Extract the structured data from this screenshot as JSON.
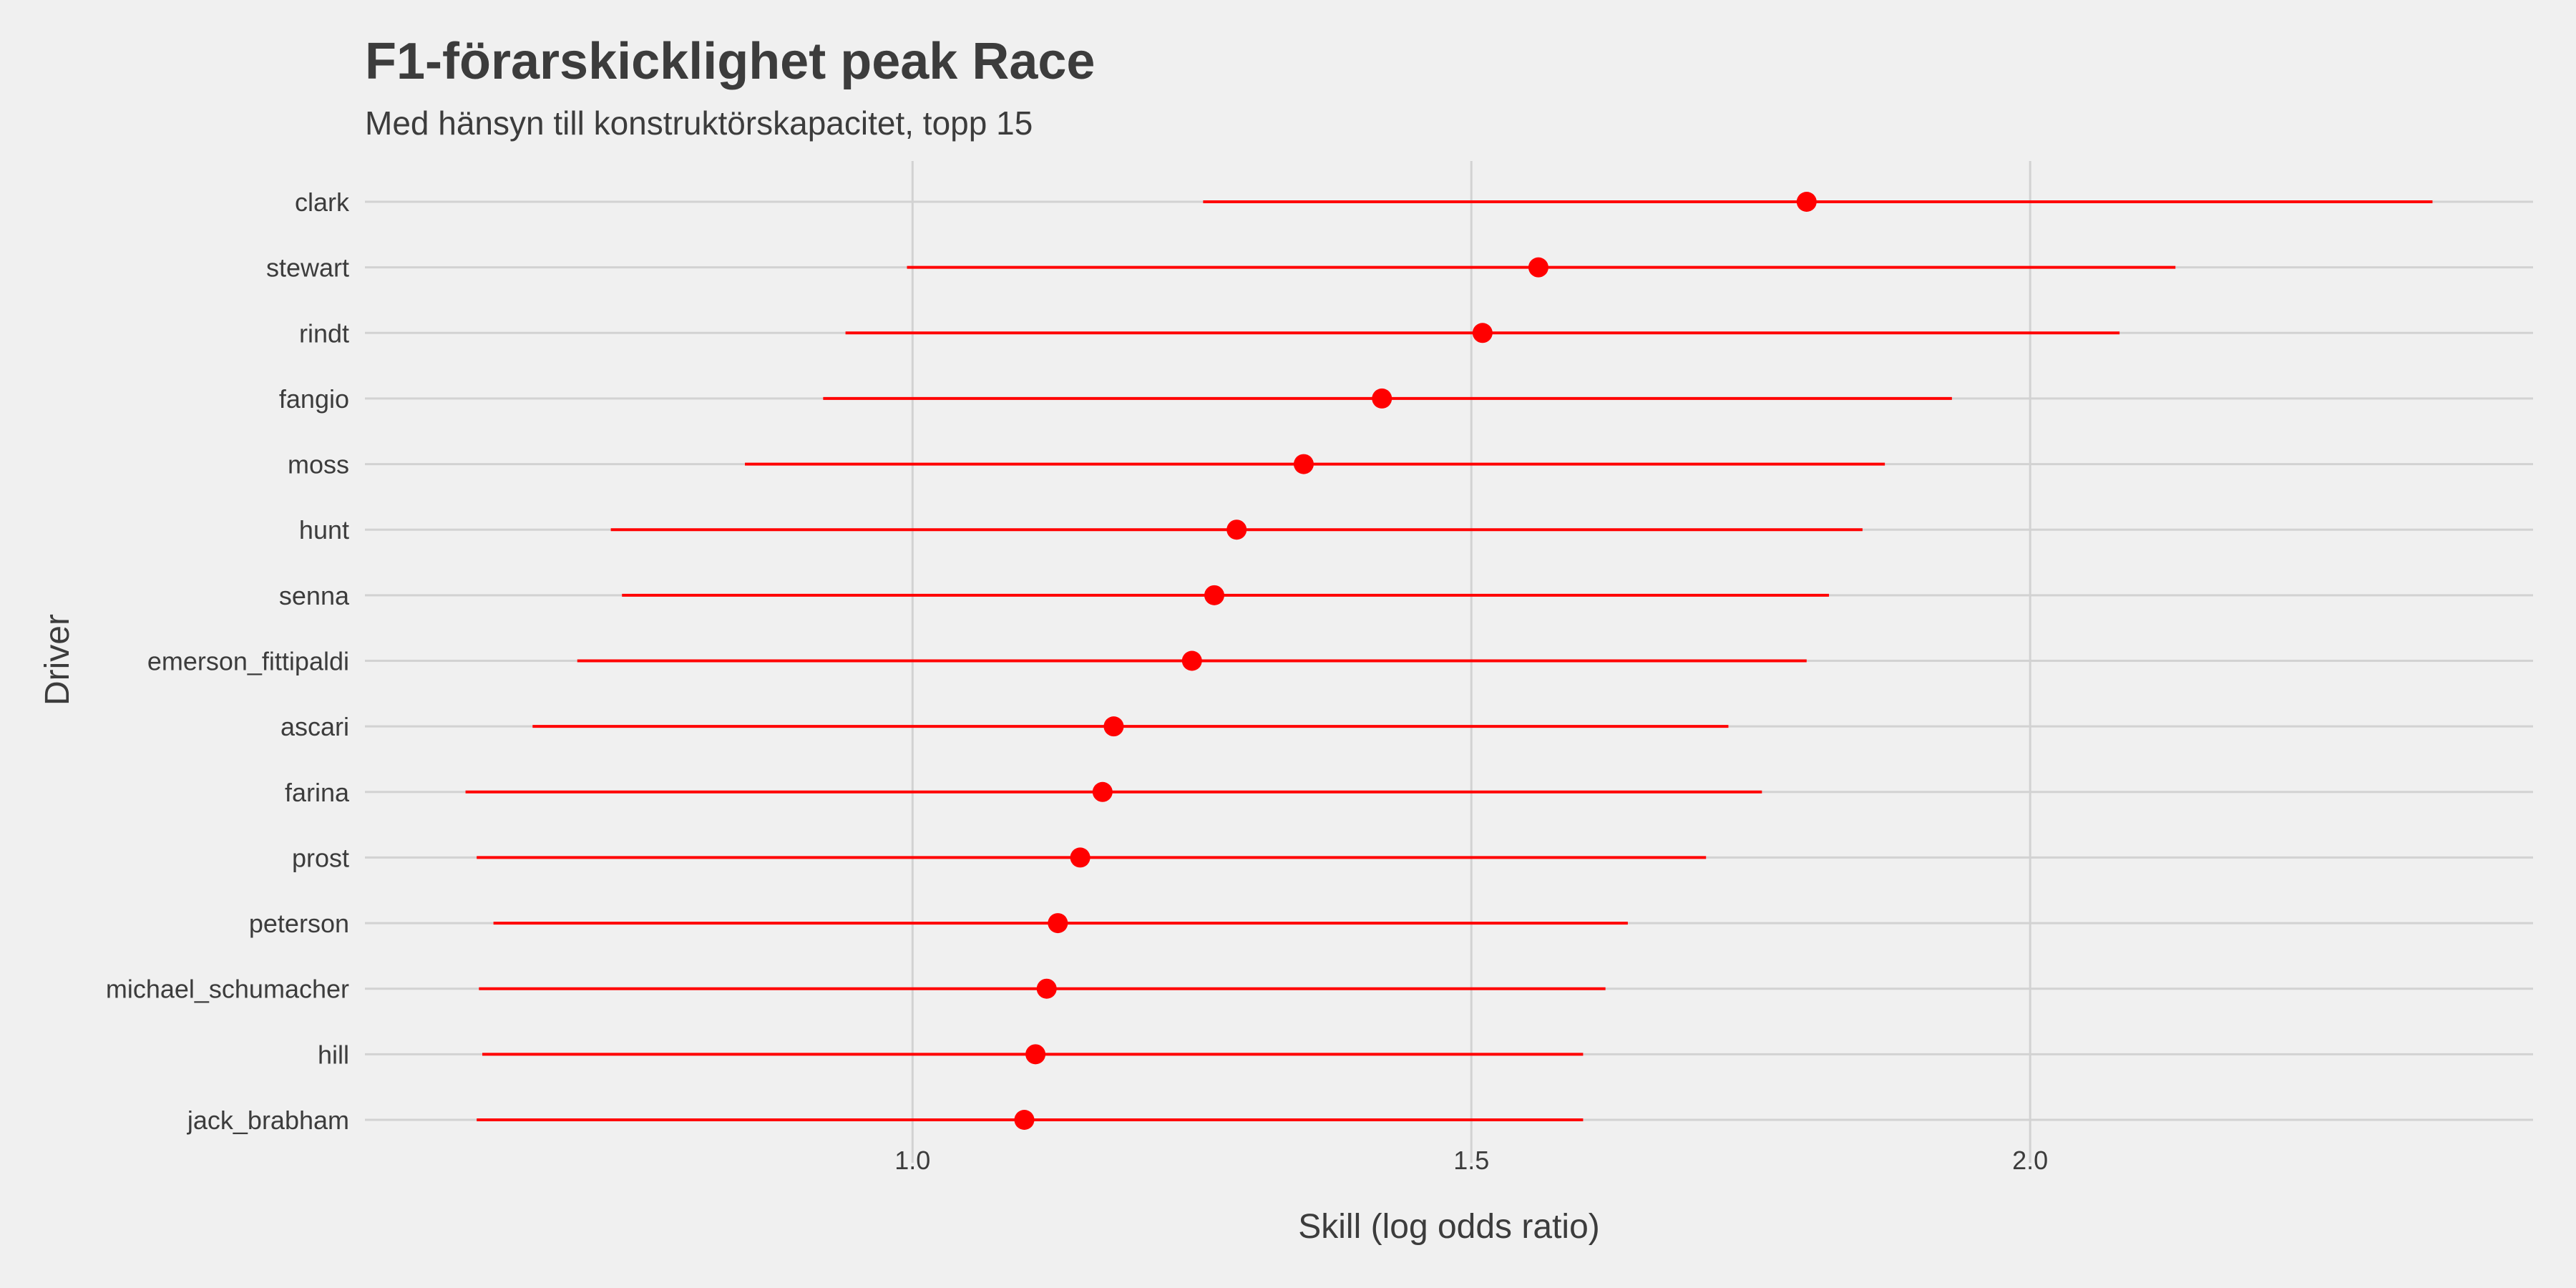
{
  "chart_data": {
    "type": "scatter",
    "title": "F1-förarskicklighet peak Race",
    "subtitle": "Med hänsyn till konstruktörskapacitet, topp 15",
    "xlabel": "Skill (log odds ratio)",
    "ylabel": "Driver",
    "xlim": [
      0.51,
      2.45
    ],
    "xticks": [
      1.0,
      1.5,
      2.0
    ],
    "xtick_labels": [
      "1.0",
      "1.5",
      "2.0"
    ],
    "grid": true,
    "legend": "none",
    "colors": {
      "background": "#f0f0f0",
      "grid": "#d2d2d2",
      "series": "#ff0000",
      "text": "#3c3c3c"
    },
    "drivers": [
      "clark",
      "stewart",
      "rindt",
      "fangio",
      "moss",
      "hunt",
      "senna",
      "emerson_fittipaldi",
      "ascari",
      "farina",
      "prost",
      "peterson",
      "michael_schumacher",
      "hill",
      "jack_brabham"
    ],
    "series": [
      {
        "estimate": [
          1.8,
          1.56,
          1.51,
          1.42,
          1.35,
          1.29,
          1.27,
          1.25,
          1.18,
          1.17,
          1.15,
          1.13,
          1.12,
          1.11,
          1.1
        ],
        "lower": [
          1.26,
          0.995,
          0.94,
          0.92,
          0.85,
          0.73,
          0.74,
          0.7,
          0.66,
          0.6,
          0.61,
          0.625,
          0.612,
          0.615,
          0.61
        ],
        "upper": [
          2.36,
          2.13,
          2.08,
          1.93,
          1.87,
          1.85,
          1.82,
          1.8,
          1.73,
          1.76,
          1.71,
          1.64,
          1.62,
          1.6,
          1.6
        ]
      }
    ]
  }
}
